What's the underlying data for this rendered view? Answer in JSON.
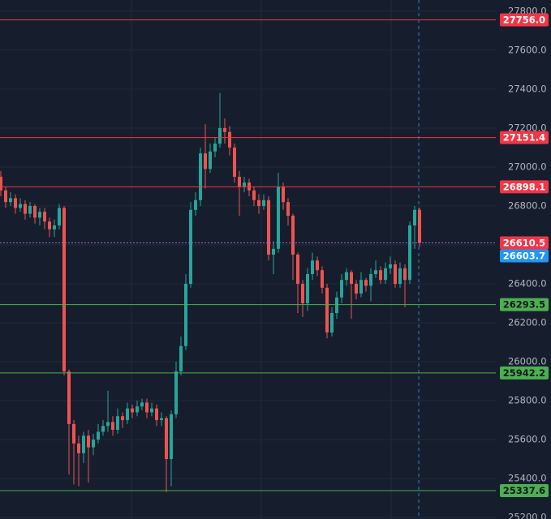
{
  "chart_data": {
    "type": "candlestick",
    "up_color": "#26a69a",
    "down_color": "#ef5350",
    "ylim": [
      25192,
      27858
    ],
    "yticks": [
      {
        "value": 25200,
        "label": "25200.0"
      },
      {
        "value": 25400,
        "label": "25400.0"
      },
      {
        "value": 25600,
        "label": "25600.0"
      },
      {
        "value": 25800,
        "label": "25800.0"
      },
      {
        "value": 26000,
        "label": "26000.0"
      },
      {
        "value": 26200,
        "label": "26200.0"
      },
      {
        "value": 26400,
        "label": "26400.0"
      },
      {
        "value": 26600,
        "label": "26600.0"
      },
      {
        "value": 26800,
        "label": "26800.0"
      },
      {
        "value": 27000,
        "label": "27000.0"
      },
      {
        "value": 27200,
        "label": "27200.0"
      },
      {
        "value": 27400,
        "label": "27400.0"
      },
      {
        "value": 27600,
        "label": "27600.0"
      },
      {
        "value": 27800,
        "label": "27800.0"
      }
    ],
    "grid": true,
    "open": [
      26950,
      26880,
      26820,
      26840,
      26790,
      26810,
      26760,
      26800,
      26740,
      26770,
      26720,
      26680,
      26700,
      26790,
      25950,
      25680,
      25580,
      25530,
      25620,
      25560,
      25600,
      25640,
      25670,
      25690,
      25650,
      25720,
      25700,
      25760,
      25740,
      25770,
      25790,
      25740,
      25760,
      25700,
      25710,
      25500,
      25730,
      25950,
      26080,
      26400,
      26780,
      26830,
      27070,
      26990,
      27080,
      27120,
      27200,
      27180,
      27100,
      26950,
      26900,
      26920,
      26880,
      26830,
      26800,
      26830,
      26550,
      26580,
      26900,
      26820,
      26750,
      26550,
      26400,
      26300,
      26450,
      26520,
      26470,
      26380,
      26150,
      26250,
      26330,
      26420,
      26460,
      26400,
      26350,
      26420,
      26390,
      26450,
      26470,
      26420,
      26480,
      26500,
      26400,
      26480,
      26420,
      26700,
      26780
    ],
    "high": [
      26980,
      26900,
      26870,
      26860,
      26840,
      26830,
      26820,
      26810,
      26790,
      26790,
      26740,
      26730,
      26810,
      26800,
      25960,
      25700,
      25620,
      25640,
      25650,
      25630,
      25680,
      25700,
      25850,
      25720,
      25760,
      25740,
      25790,
      25780,
      25800,
      25810,
      25810,
      25790,
      25780,
      25740,
      25720,
      25750,
      26000,
      26130,
      26450,
      26820,
      26870,
      27100,
      27220,
      27120,
      27150,
      27380,
      27250,
      27210,
      27120,
      26980,
      26950,
      26940,
      26900,
      26860,
      26860,
      26850,
      26620,
      26970,
      26920,
      26840,
      26760,
      26560,
      26420,
      26480,
      26560,
      26540,
      26490,
      26400,
      26280,
      26360,
      26450,
      26480,
      26470,
      26420,
      26460,
      26430,
      26480,
      26520,
      26490,
      26510,
      26540,
      26520,
      26510,
      26500,
      26720,
      26800,
      26790
    ],
    "low": [
      26850,
      26790,
      26800,
      26760,
      26770,
      26730,
      26740,
      26710,
      26700,
      26680,
      26640,
      26640,
      26680,
      25930,
      25420,
      25370,
      25360,
      25480,
      25380,
      25520,
      25580,
      25620,
      25640,
      25620,
      25630,
      25660,
      25680,
      25710,
      25720,
      25750,
      25710,
      25720,
      25670,
      25670,
      25330,
      25360,
      25710,
      25930,
      26060,
      26380,
      26750,
      26800,
      26890,
      26970,
      27050,
      27100,
      27120,
      27060,
      26920,
      26750,
      26870,
      26850,
      26800,
      26760,
      26780,
      26520,
      26450,
      26560,
      26780,
      26700,
      26420,
      26250,
      26230,
      26260,
      26420,
      26440,
      26350,
      26120,
      26130,
      26220,
      26300,
      26390,
      26220,
      26320,
      26330,
      26360,
      26310,
      26430,
      26400,
      26400,
      26450,
      26380,
      26380,
      26280,
      26400,
      26580,
      26590
    ],
    "close": [
      26880,
      26820,
      26840,
      26790,
      26810,
      26760,
      26800,
      26740,
      26770,
      26720,
      26680,
      26700,
      26790,
      25950,
      25680,
      25580,
      25530,
      25620,
      25560,
      25600,
      25640,
      25670,
      25690,
      25650,
      25720,
      25700,
      25760,
      25740,
      25770,
      25790,
      25740,
      25760,
      25700,
      25710,
      25500,
      25730,
      25950,
      26080,
      26400,
      26780,
      26830,
      27070,
      26990,
      27080,
      27120,
      27200,
      27180,
      27100,
      26950,
      26900,
      26920,
      26880,
      26830,
      26800,
      26830,
      26550,
      26580,
      26900,
      26820,
      26750,
      26550,
      26400,
      26300,
      26450,
      26520,
      26470,
      26380,
      26150,
      26250,
      26330,
      26420,
      26460,
      26400,
      26350,
      26420,
      26390,
      26450,
      26470,
      26420,
      26480,
      26500,
      26400,
      26480,
      26420,
      26700,
      26780,
      26610.5
    ],
    "levels": [
      {
        "value": 27756,
        "label": "27756.0",
        "color": "#f23645",
        "text_color": "#ffffff"
      },
      {
        "value": 27151.4,
        "label": "27151.4",
        "color": "#f23645",
        "text_color": "#ffffff"
      },
      {
        "value": 26898.1,
        "label": "26898.1",
        "color": "#f23645",
        "text_color": "#ffffff"
      },
      {
        "value": 26293.5,
        "label": "26293.5",
        "color": "#4caf50",
        "text_color": "#131722"
      },
      {
        "value": 25942.2,
        "label": "25942.2",
        "color": "#4caf50",
        "text_color": "#131722"
      },
      {
        "value": 25337.6,
        "label": "25337.6",
        "color": "#4caf50",
        "text_color": "#131722"
      }
    ],
    "price_labels": [
      {
        "value": 26610.5,
        "color": "#f23645"
      },
      {
        "value": 26603.7,
        "color": "#2196f3"
      }
    ]
  }
}
